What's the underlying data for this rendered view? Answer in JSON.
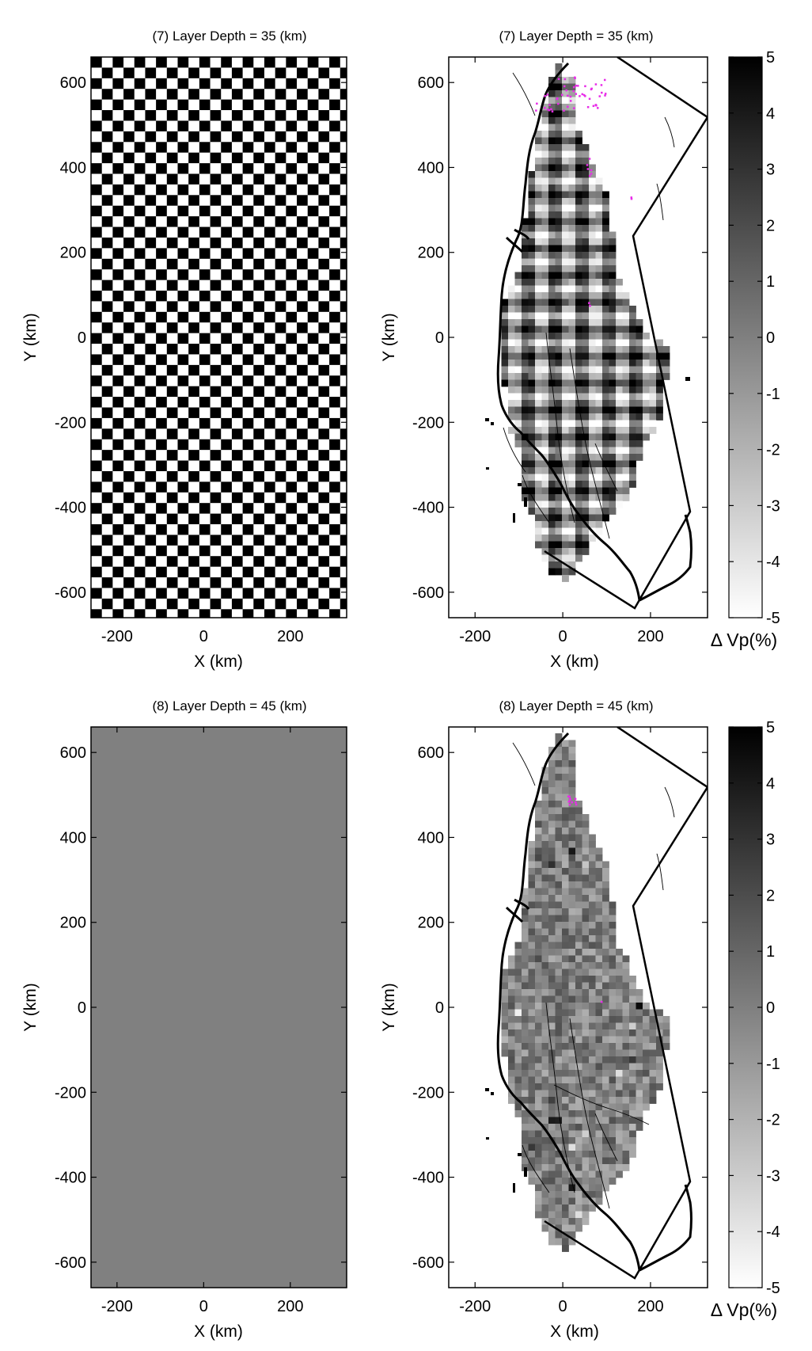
{
  "figure": {
    "colorbar_label": "Δ Vp(%)",
    "colorbar_ticks": [
      "5",
      "4",
      "3",
      "2",
      "1",
      "0",
      "-1",
      "-2",
      "-3",
      "-4",
      "-5"
    ]
  },
  "chart_data": [
    {
      "type": "heatmap",
      "panel": "top-left",
      "title": "(7) Layer Depth = 35 (km)",
      "xlabel": "X (km)",
      "ylabel": "Y (km)",
      "xlim": [
        -260,
        330
      ],
      "ylim": [
        -660,
        660
      ],
      "xticks": [
        -200,
        0,
        200
      ],
      "yticks": [
        600,
        400,
        200,
        0,
        -200,
        -400,
        -600
      ],
      "xtick_labels": [
        "-200",
        "0",
        "200"
      ],
      "ytick_labels": [
        "600",
        "400",
        "200",
        "0",
        "-200",
        "-400",
        "-600"
      ],
      "pattern": "checkerboard",
      "cell_size_km": 25,
      "values": "+/-5 % alternating"
    },
    {
      "type": "heatmap",
      "panel": "top-right",
      "title": "(7) Layer Depth = 35 (km)",
      "xlabel": "X (km)",
      "ylabel": "Y (km)",
      "xlim": [
        -260,
        330
      ],
      "ylim": [
        -660,
        660
      ],
      "xticks": [
        -200,
        0,
        200
      ],
      "yticks": [
        600,
        400,
        200,
        0,
        -200,
        -400,
        -600
      ],
      "xtick_labels": [
        "-200",
        "0",
        "200"
      ],
      "ytick_labels": [
        "600",
        "400",
        "200",
        "0",
        "-200",
        "-400",
        "-600"
      ],
      "pattern": "recovered checkerboard",
      "colorbar": {
        "min": -5,
        "max": 5,
        "label": "Δ Vp(%)"
      }
    },
    {
      "type": "heatmap",
      "panel": "bottom-left",
      "title": "(8) Layer Depth = 45 (km)",
      "xlabel": "X (km)",
      "ylabel": "Y (km)",
      "xlim": [
        -260,
        330
      ],
      "ylim": [
        -660,
        660
      ],
      "xticks": [
        -200,
        0,
        200
      ],
      "yticks": [
        600,
        400,
        200,
        0,
        -200,
        -400,
        -600
      ],
      "xtick_labels": [
        "-200",
        "0",
        "200"
      ],
      "ytick_labels": [
        "600",
        "400",
        "200",
        "0",
        "-200",
        "-400",
        "-600"
      ],
      "pattern": "uniform",
      "values": 0
    },
    {
      "type": "heatmap",
      "panel": "bottom-right",
      "title": "(8) Layer Depth = 45 (km)",
      "xlabel": "X (km)",
      "ylabel": "Y (km)",
      "xlim": [
        -260,
        330
      ],
      "ylim": [
        -660,
        660
      ],
      "xticks": [
        -200,
        0,
        200
      ],
      "yticks": [
        600,
        400,
        200,
        0,
        -200,
        -400,
        -600
      ],
      "xtick_labels": [
        "-200",
        "0",
        "200"
      ],
      "ytick_labels": [
        "600",
        "400",
        "200",
        "0",
        "-200",
        "-400",
        "-600"
      ],
      "pattern": "recovered noise",
      "colorbar": {
        "min": -5,
        "max": 5,
        "label": "Δ Vp(%)"
      }
    }
  ]
}
